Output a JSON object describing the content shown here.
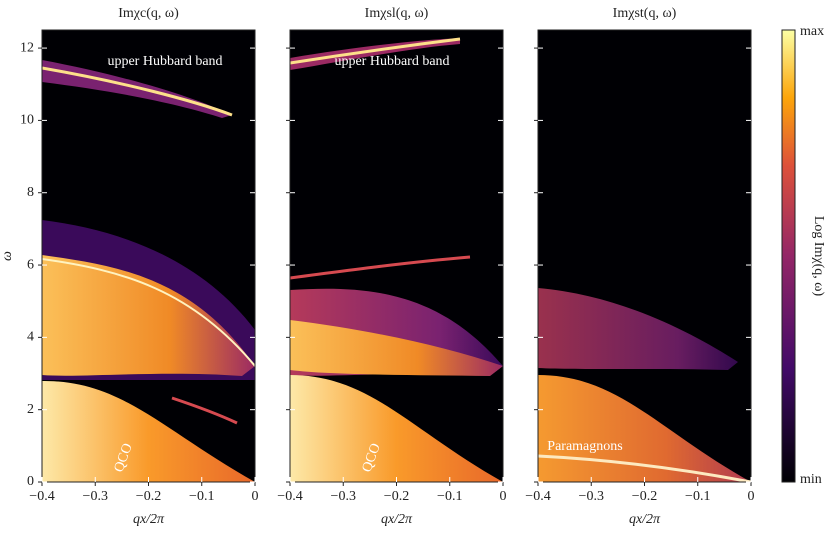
{
  "chart_data": [
    {
      "type": "heatmap",
      "title": "Imχc(q, ω)",
      "xlabel": "qx/2π",
      "ylabel": "ω",
      "xlim": [
        -0.4,
        0
      ],
      "xticks": [
        {
          "value": -0.4,
          "label": "−0.4"
        },
        {
          "value": -0.3,
          "label": "−0.3"
        },
        {
          "value": -0.2,
          "label": "−0.2"
        },
        {
          "value": -0.1,
          "label": "−0.1"
        },
        0
      ],
      "ylim": [
        0,
        12.5
      ],
      "yticks": [
        0,
        2,
        4,
        6,
        8,
        10,
        12
      ],
      "annotations": [
        "upper Hubbard band",
        "QCO"
      ]
    },
    {
      "type": "heatmap",
      "title": "Imχsl(q, ω)",
      "xlabel": "qx/2π",
      "xlim": [
        -0.4,
        0
      ],
      "xticks": [
        {
          "value": -0.4,
          "label": "−0.4"
        },
        {
          "value": -0.3,
          "label": "−0.3"
        },
        {
          "value": -0.2,
          "label": "−0.2"
        },
        {
          "value": -0.1,
          "label": "−0.1"
        },
        0
      ],
      "ylim": [
        0,
        12.5
      ],
      "yticks": [
        0,
        2,
        4,
        6,
        8,
        10,
        12
      ],
      "annotations": [
        "upper Hubbard band",
        "QCO"
      ]
    },
    {
      "type": "heatmap",
      "title": "Imχst(q, ω)",
      "xlabel": "qx/2π",
      "xlim": [
        -0.4,
        0
      ],
      "xticks": [
        {
          "value": -0.4,
          "label": "−0.4"
        },
        {
          "value": -0.3,
          "label": "−0.3"
        },
        {
          "value": -0.2,
          "label": "−0.2"
        },
        {
          "value": -0.1,
          "label": "−0.1"
        },
        0
      ],
      "ylim": [
        0,
        12.5
      ],
      "yticks": [
        0,
        2,
        4,
        6,
        8,
        10,
        12
      ],
      "annotations": [
        "Paramagnons"
      ]
    }
  ],
  "colorbar": {
    "label": "Log Imχ(q, ω)",
    "max_label": "max",
    "min_label": "min"
  }
}
